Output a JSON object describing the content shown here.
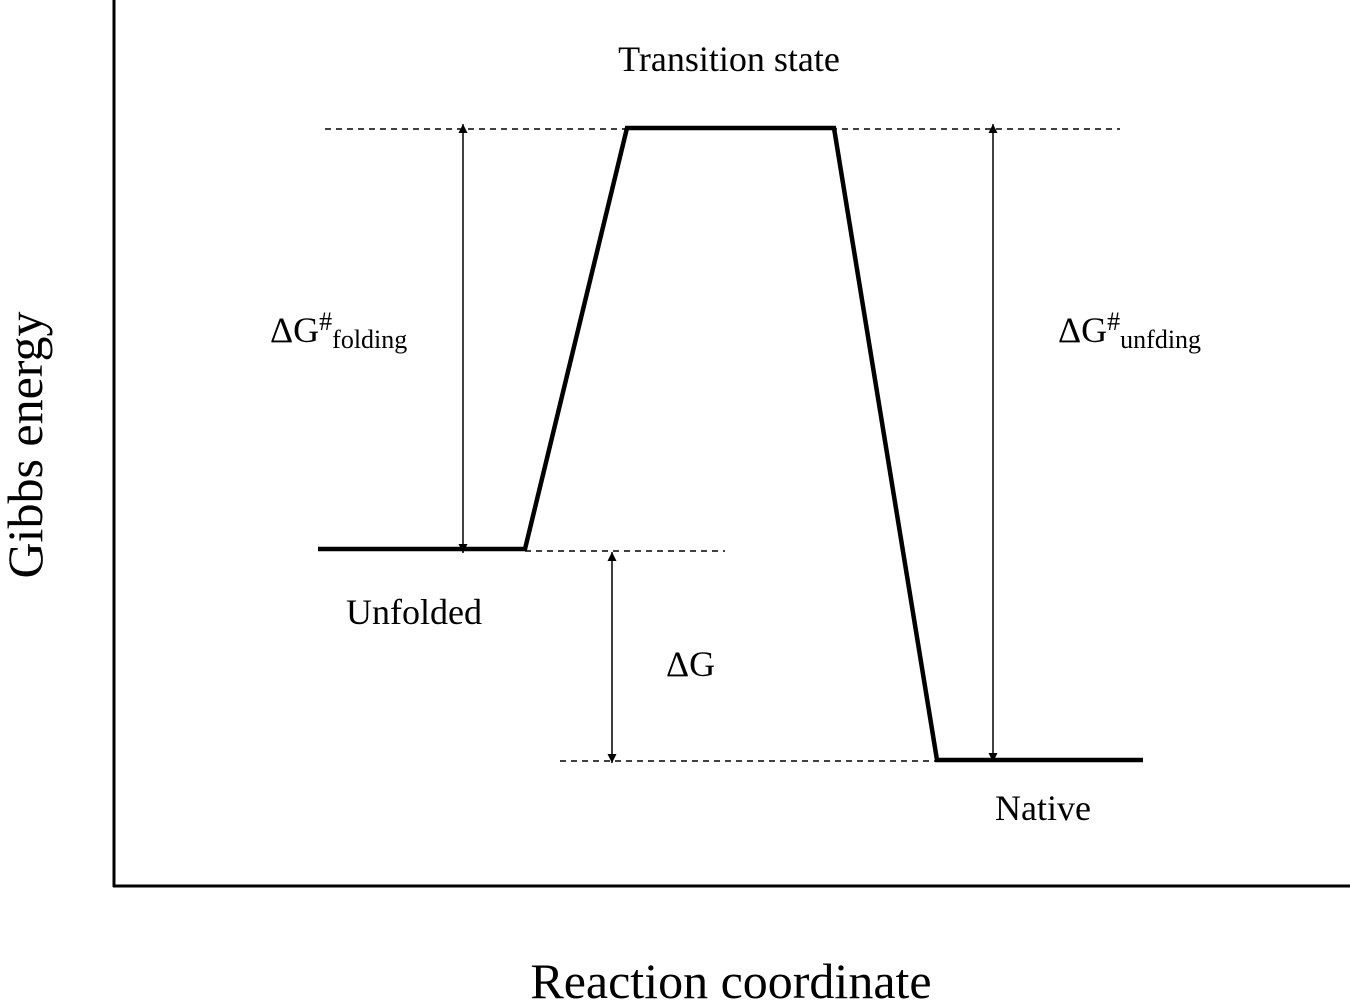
{
  "diagram": {
    "axes": {
      "x_label": "Reaction coordinate",
      "y_label": "Gibbs energy"
    },
    "states": {
      "transition": "Transition state",
      "unfolded": "Unfolded",
      "native": "Native"
    },
    "energy_labels": {
      "delta_symbol": "ΔG",
      "folding_base": "ΔG",
      "folding_sup": "#",
      "folding_sub": "folding",
      "unfolding_base": "ΔG",
      "unfolding_sup": "#",
      "unfolding_sub": "unfding"
    },
    "colors": {
      "line": "#000000",
      "background": "#ffffff"
    }
  }
}
